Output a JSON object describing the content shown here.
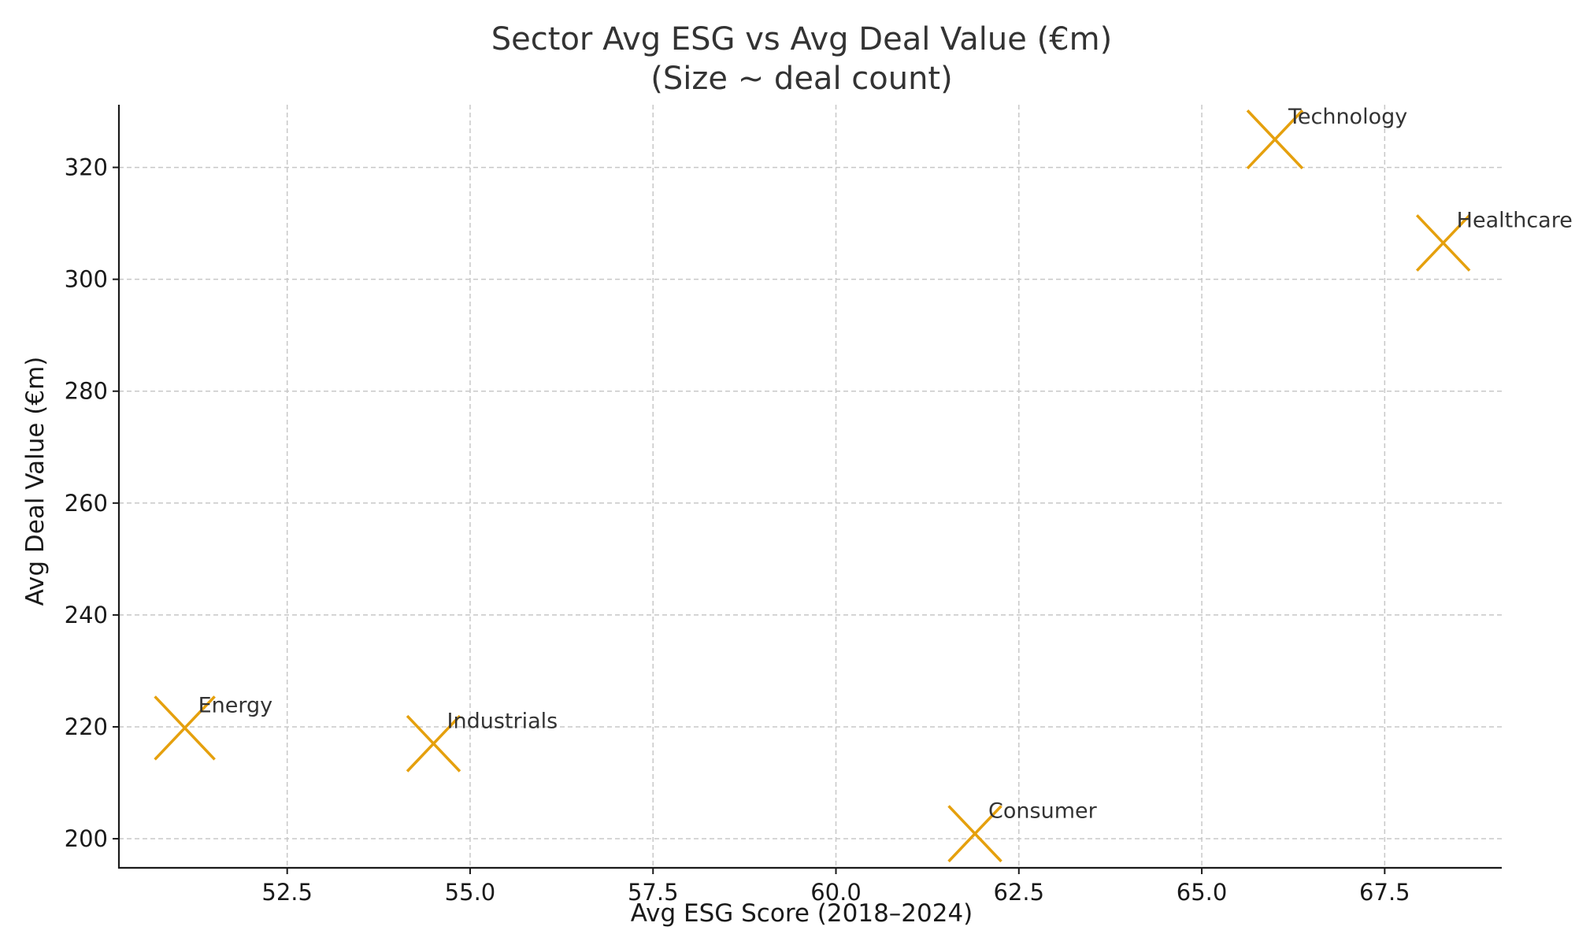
{
  "chart_data": {
    "type": "scatter",
    "title": "Sector Avg ESG vs Avg Deal Value (€m)",
    "subtitle": "(Size ~ deal count)",
    "xlabel": "Avg ESG Score (2018–2024)",
    "ylabel": "Avg Deal Value (€m)",
    "xlim": [
      50.2,
      69.1
    ],
    "ylim": [
      194.8,
      331.2
    ],
    "xticks": [
      "52.5",
      "55.0",
      "57.5",
      "60.0",
      "62.5",
      "65.0",
      "67.5"
    ],
    "yticks": [
      "200",
      "220",
      "240",
      "260",
      "280",
      "300",
      "320"
    ],
    "grid": true,
    "marker": "x",
    "marker_color": "#E5A00D",
    "points": [
      {
        "label": "Energy",
        "x": 51.1,
        "y": 219.8,
        "deal_count_rel": 1.0
      },
      {
        "label": "Industrials",
        "x": 54.5,
        "y": 217.0,
        "deal_count_rel": 0.88
      },
      {
        "label": "Consumer",
        "x": 61.9,
        "y": 200.9,
        "deal_count_rel": 0.88
      },
      {
        "label": "Technology",
        "x": 66.0,
        "y": 325.0,
        "deal_count_rel": 0.92
      },
      {
        "label": "Healthcare",
        "x": 68.3,
        "y": 306.5,
        "deal_count_rel": 0.88
      }
    ]
  }
}
